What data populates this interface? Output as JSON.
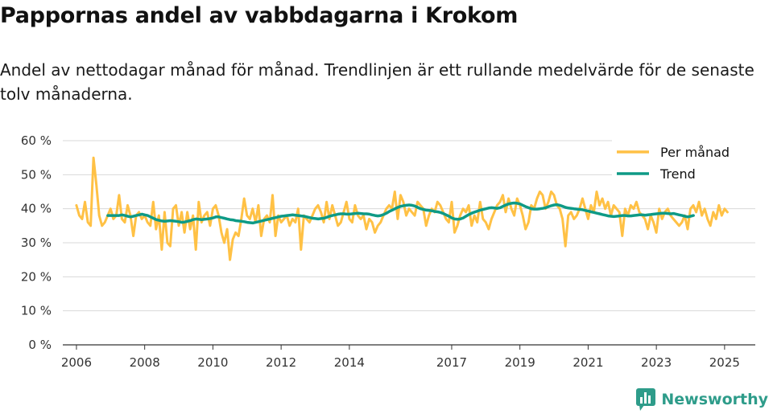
{
  "header": {
    "title": "Pappornas andel av vabbdagarna i Krokom",
    "subtitle": "Andel av nettodagar månad för månad. Trendlinjen är ett rullande medelvärde för de senaste tolv månaderna."
  },
  "brand": {
    "name": "Newsworthy"
  },
  "colors": {
    "monthly": "#FFC145",
    "trend": "#0E9A86",
    "grid": "#d8d8d8",
    "axis": "#333333",
    "brand": "#2E9C8A"
  },
  "chart_data": {
    "type": "line",
    "title": "Pappornas andel av vabbdagarna i Krokom",
    "xlabel": "",
    "ylabel": "",
    "ylim": [
      0,
      60
    ],
    "xlim": [
      2005.6,
      2025.9
    ],
    "y_ticks": [
      0,
      10,
      20,
      30,
      40,
      50,
      60
    ],
    "y_tick_labels": [
      "0 %",
      "10 %",
      "20 %",
      "30 %",
      "40 %",
      "50 %",
      "60 %"
    ],
    "x_ticks": [
      2006,
      2008,
      2010,
      2012,
      2014,
      2017,
      2019,
      2021,
      2023,
      2025
    ],
    "x_tick_labels": [
      "2006",
      "2008",
      "2010",
      "2012",
      "2014",
      "2017",
      "2019",
      "2021",
      "2023",
      "2025"
    ],
    "legend_position": "top-right",
    "series": [
      {
        "name": "Per månad",
        "color": "#FFC145",
        "start": 2006.0,
        "step": 0.0833333,
        "values": [
          41,
          38,
          37,
          42,
          36,
          35,
          55,
          47,
          38,
          35,
          36,
          38,
          40,
          37,
          38,
          44,
          37,
          36,
          41,
          38,
          32,
          38,
          39,
          37,
          38,
          36,
          35,
          42,
          34,
          38,
          28,
          39,
          30,
          29,
          40,
          41,
          35,
          39,
          33,
          39,
          34,
          38,
          28,
          42,
          36,
          38,
          39,
          35,
          40,
          41,
          38,
          33,
          30,
          34,
          25,
          31,
          33,
          32,
          37,
          43,
          38,
          37,
          40,
          36,
          41,
          32,
          37,
          38,
          36,
          44,
          32,
          38,
          36,
          37,
          38,
          35,
          37,
          36,
          40,
          28,
          38,
          37,
          36,
          38,
          40,
          41,
          39,
          36,
          42,
          37,
          41,
          38,
          35,
          36,
          39,
          42,
          37,
          36,
          41,
          38,
          37,
          38,
          34,
          37,
          36,
          33,
          35,
          36,
          38,
          40,
          41,
          40,
          45,
          37,
          44,
          42,
          38,
          40,
          39,
          38,
          42,
          41,
          40,
          35,
          38,
          40,
          39,
          42,
          41,
          39,
          37,
          36,
          42,
          33,
          35,
          38,
          40,
          39,
          41,
          35,
          38,
          36,
          42,
          37,
          36,
          34,
          37,
          39,
          41,
          42,
          44,
          39,
          43,
          40,
          38,
          43,
          41,
          38,
          34,
          36,
          41,
          40,
          43,
          45,
          44,
          40,
          42,
          45,
          44,
          41,
          40,
          37,
          29,
          38,
          39,
          37,
          38,
          40,
          43,
          40,
          37,
          41,
          39,
          45,
          41,
          43,
          40,
          42,
          38,
          41,
          40,
          39,
          32,
          40,
          38,
          41,
          40,
          42,
          39,
          38,
          37,
          34,
          38,
          36,
          33,
          40,
          37,
          39,
          40,
          38,
          37,
          36,
          35,
          36,
          38,
          34,
          40,
          41,
          39,
          42,
          38,
          40,
          37,
          35,
          39,
          37,
          41,
          38,
          40,
          39
        ]
      },
      {
        "name": "Trend",
        "color": "#0E9A86",
        "start": 2006.92,
        "step": 0.0833333,
        "values": [
          38,
          38,
          38,
          38,
          38,
          38.2,
          38,
          37.8,
          37.6,
          37.8,
          38,
          38.2,
          38.4,
          38.2,
          38,
          37.6,
          37.2,
          36.8,
          36.6,
          36.4,
          36.3,
          36.4,
          36.5,
          36.4,
          36.3,
          36.2,
          36,
          36.1,
          36.3,
          36.5,
          36.8,
          37,
          36.9,
          36.8,
          36.9,
          37,
          37.1,
          37.3,
          37.6,
          37.6,
          37.4,
          37.2,
          37,
          36.8,
          36.7,
          36.5,
          36.4,
          36.3,
          36.2,
          36,
          35.9,
          35.8,
          36,
          36.2,
          36.4,
          36.6,
          36.8,
          37,
          37.2,
          37.4,
          37.6,
          37.8,
          37.9,
          38,
          38.1,
          38.2,
          38.1,
          38,
          37.9,
          37.8,
          37.6,
          37.4,
          37.2,
          37.1,
          37,
          37.1,
          37.2,
          37.5,
          37.8,
          38,
          38.2,
          38.4,
          38.5,
          38.5,
          38.4,
          38.4,
          38.5,
          38.6,
          38.7,
          38.6,
          38.5,
          38.5,
          38.4,
          38.2,
          38,
          37.9,
          38,
          38.3,
          38.7,
          39.2,
          39.6,
          40,
          40.4,
          40.7,
          40.9,
          41,
          41.1,
          41,
          40.8,
          40.4,
          40,
          39.8,
          39.6,
          39.5,
          39.4,
          39.2,
          39.1,
          38.9,
          38.6,
          38.2,
          37.8,
          37.3,
          37,
          36.9,
          37,
          37.3,
          37.8,
          38.3,
          38.7,
          39,
          39.3,
          39.6,
          39.8,
          40,
          40.2,
          40.3,
          40.2,
          40.1,
          40.3,
          40.7,
          41.1,
          41.4,
          41.6,
          41.7,
          41.6,
          41.4,
          41,
          40.6,
          40.3,
          40,
          39.9,
          39.9,
          40,
          40.1,
          40.3,
          40.6,
          40.9,
          41.1,
          41.2,
          41,
          40.7,
          40.4,
          40.2,
          40.1,
          40,
          39.9,
          39.8,
          39.7,
          39.5,
          39.3,
          39.1,
          38.9,
          38.7,
          38.5,
          38.3,
          38.1,
          37.9,
          37.8,
          37.7,
          37.8,
          37.9,
          38,
          38,
          37.9,
          37.9,
          38,
          38.1,
          38.2,
          38.2,
          38.1,
          38.2,
          38.3,
          38.4,
          38.5,
          38.6,
          38.7,
          38.7,
          38.6,
          38.5,
          38.6,
          38.4,
          38.2,
          38,
          37.8,
          37.6,
          37.8,
          38
        ]
      }
    ]
  }
}
